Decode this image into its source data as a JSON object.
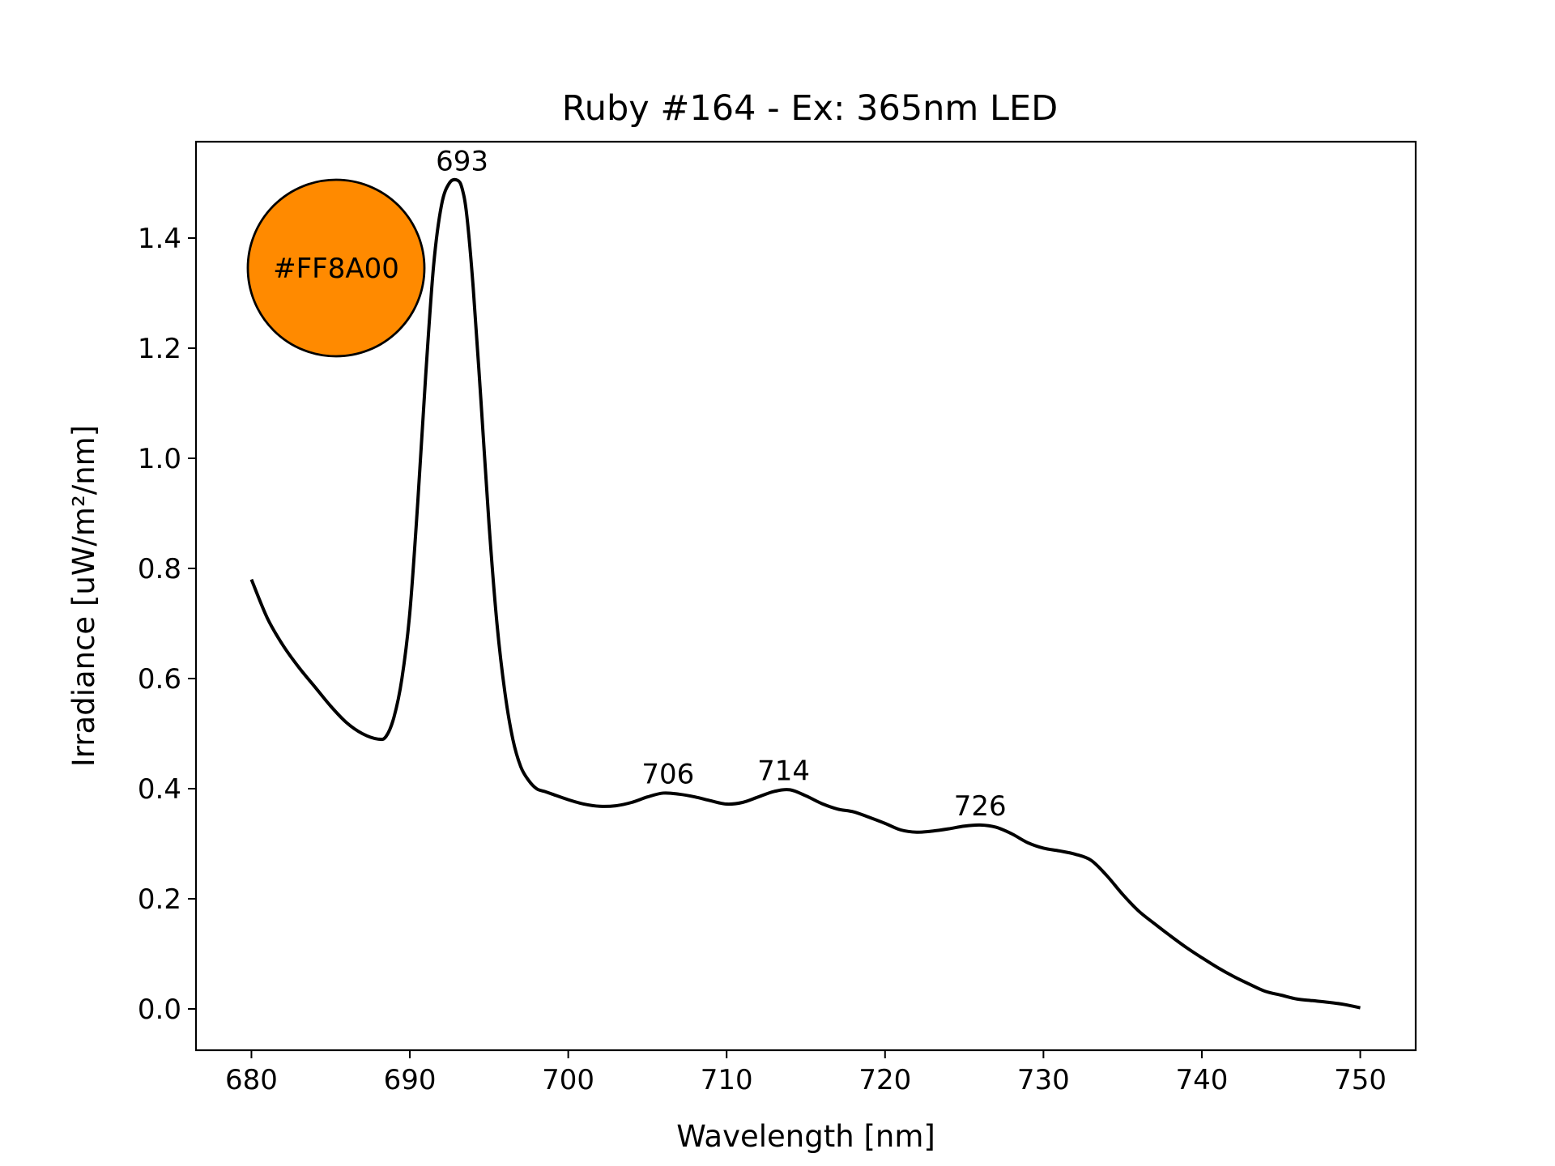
{
  "chart_data": {
    "type": "line",
    "title": "Ruby #164 - Ex: 365nm LED",
    "xlabel": "Wavelength [nm]",
    "ylabel": "Irradiance [uW/m²/nm]",
    "xlim": [
      676.5,
      753.5
    ],
    "ylim": [
      -0.075,
      1.575
    ],
    "xticks": [
      680,
      690,
      700,
      710,
      720,
      730,
      740,
      750
    ],
    "xtick_labels": [
      "680",
      "690",
      "700",
      "710",
      "720",
      "730",
      "740",
      "750"
    ],
    "yticks": [
      0.0,
      0.2,
      0.4,
      0.6,
      0.8,
      1.0,
      1.2,
      1.4
    ],
    "ytick_labels": [
      "0.0",
      "0.2",
      "0.4",
      "0.6",
      "0.8",
      "1.0",
      "1.2",
      "1.4"
    ],
    "grid": false,
    "line_color": "#000000",
    "series": [
      {
        "x": [
          680,
          681,
          682,
          683,
          684,
          685,
          686,
          687,
          688,
          688.5,
          689,
          689.5,
          690,
          690.5,
          691,
          691.5,
          692,
          692.5,
          693,
          693.3,
          693.6,
          694,
          694.5,
          695,
          695.5,
          696,
          696.5,
          697,
          697.5,
          698,
          698.5,
          699,
          700,
          701,
          702,
          703,
          704,
          705,
          706,
          707,
          708,
          709,
          710,
          711,
          712,
          713,
          714,
          715,
          716,
          717,
          718,
          719,
          720,
          721,
          722,
          723,
          724,
          725,
          726,
          727,
          728,
          729,
          730,
          731,
          732,
          733,
          734,
          735,
          736,
          737,
          738,
          739,
          740,
          741,
          742,
          743,
          744,
          745,
          746,
          747,
          748,
          749,
          750
        ],
        "y": [
          0.78,
          0.71,
          0.66,
          0.62,
          0.585,
          0.55,
          0.52,
          0.5,
          0.49,
          0.495,
          0.53,
          0.6,
          0.72,
          0.92,
          1.15,
          1.35,
          1.46,
          1.5,
          1.505,
          1.49,
          1.44,
          1.31,
          1.1,
          0.88,
          0.7,
          0.575,
          0.49,
          0.44,
          0.415,
          0.4,
          0.395,
          0.39,
          0.38,
          0.372,
          0.368,
          0.369,
          0.375,
          0.385,
          0.392,
          0.39,
          0.385,
          0.378,
          0.372,
          0.375,
          0.385,
          0.395,
          0.398,
          0.387,
          0.373,
          0.363,
          0.358,
          0.348,
          0.337,
          0.325,
          0.321,
          0.323,
          0.327,
          0.332,
          0.334,
          0.33,
          0.318,
          0.302,
          0.292,
          0.287,
          0.281,
          0.27,
          0.242,
          0.208,
          0.178,
          0.155,
          0.133,
          0.112,
          0.093,
          0.075,
          0.059,
          0.045,
          0.032,
          0.025,
          0.018,
          0.015,
          0.012,
          0.008,
          0.002
        ]
      }
    ],
    "annotations": [
      {
        "text": "693",
        "x": 693.3,
        "y": 1.505
      },
      {
        "text": "706",
        "x": 706.3,
        "y": 0.392
      },
      {
        "text": "714",
        "x": 713.6,
        "y": 0.398
      },
      {
        "text": "726",
        "x": 726.0,
        "y": 0.334
      }
    ],
    "swatch": {
      "color": "#FF8A00",
      "label": "#FF8A00"
    }
  }
}
